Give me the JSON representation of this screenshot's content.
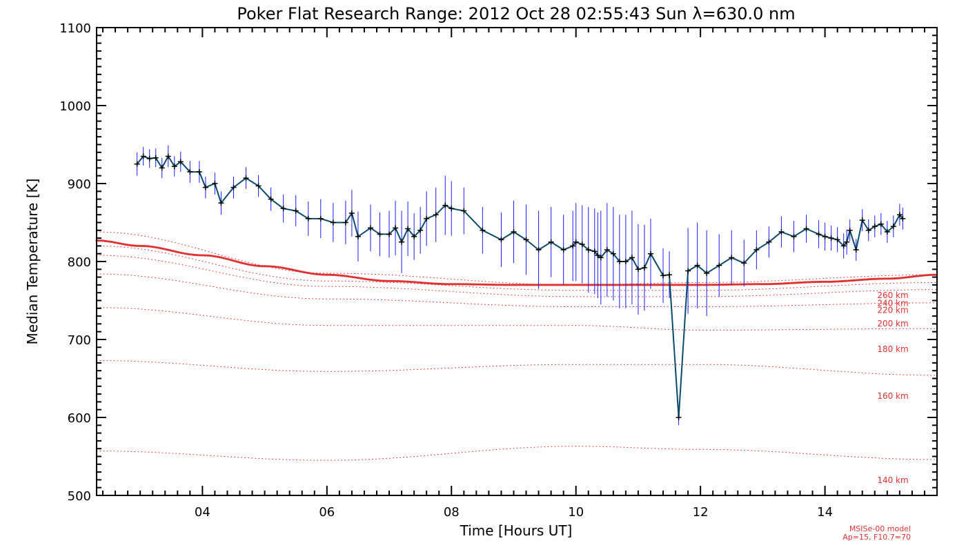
{
  "chart_data": {
    "type": "line",
    "title": "Poker Flat Research Range: 2012 Oct 28 02:55:43 Sun λ=630.0 nm",
    "xlabel": "Time [Hours UT]",
    "ylabel": "Median Temperature [K]",
    "xlim": [
      2.3,
      15.8
    ],
    "ylim": [
      500,
      1100
    ],
    "x_ticks": [
      4,
      6,
      8,
      10,
      12,
      14
    ],
    "x_tick_labels": [
      "04",
      "06",
      "08",
      "10",
      "12",
      "14"
    ],
    "y_ticks": [
      500,
      600,
      700,
      800,
      900,
      1000,
      1100
    ],
    "y_tick_labels": [
      "500",
      "600",
      "700",
      "800",
      "900",
      "1000",
      "1100"
    ],
    "grid": false,
    "colors": {
      "data_line": "#0a4a6a",
      "error_bars": "#1a1aff",
      "markers": "#000000",
      "model": "#e03030"
    },
    "series": [
      {
        "x": [
          2.95,
          3.05,
          3.15,
          3.25,
          3.35,
          3.45,
          3.55,
          3.65,
          3.8,
          3.95,
          4.05,
          4.2,
          4.3,
          4.5,
          4.7,
          4.9,
          5.1,
          5.3,
          5.5,
          5.7,
          5.9,
          6.1,
          6.3,
          6.4,
          6.5,
          6.7,
          6.85,
          7.0,
          7.1,
          7.2,
          7.3,
          7.4,
          7.5,
          7.6,
          7.75,
          7.9,
          8.0,
          8.2,
          8.5,
          8.8,
          9.0,
          9.2,
          9.4,
          9.6,
          9.8,
          9.95,
          10.0,
          10.1,
          10.2,
          10.3,
          10.35,
          10.4,
          10.5,
          10.6,
          10.7,
          10.8,
          10.9,
          11.0,
          11.1,
          11.2,
          11.4,
          11.5,
          11.65,
          11.8,
          11.95,
          12.1,
          12.3,
          12.5,
          12.7,
          12.9,
          13.1,
          13.3,
          13.5,
          13.7,
          13.9,
          14.0,
          14.1,
          14.2,
          14.3,
          14.35,
          14.4,
          14.5,
          14.6,
          14.7,
          14.8,
          14.9,
          15.0,
          15.1,
          15.2,
          15.25
        ],
        "values": [
          925,
          935,
          932,
          933,
          920,
          935,
          922,
          928,
          915,
          915,
          895,
          900,
          875,
          895,
          907,
          897,
          880,
          868,
          865,
          855,
          855,
          850,
          850,
          862,
          832,
          843,
          835,
          835,
          843,
          825,
          842,
          832,
          840,
          855,
          860,
          872,
          868,
          865,
          840,
          828,
          838,
          828,
          815,
          825,
          815,
          820,
          825,
          822,
          815,
          813,
          808,
          805,
          815,
          810,
          800,
          800,
          805,
          790,
          792,
          810,
          782,
          783,
          600,
          788,
          795,
          785,
          795,
          805,
          798,
          815,
          825,
          838,
          832,
          842,
          835,
          832,
          830,
          828,
          820,
          825,
          840,
          815,
          853,
          840,
          845,
          848,
          838,
          845,
          860,
          855
        ],
        "errors": [
          15,
          12,
          12,
          12,
          13,
          14,
          13,
          13,
          14,
          14,
          14,
          14,
          15,
          14,
          14,
          14,
          15,
          18,
          20,
          22,
          25,
          25,
          28,
          30,
          32,
          30,
          28,
          30,
          35,
          40,
          35,
          30,
          30,
          35,
          35,
          38,
          35,
          30,
          30,
          35,
          40,
          45,
          50,
          45,
          45,
          45,
          50,
          50,
          55,
          55,
          55,
          60,
          60,
          60,
          60,
          60,
          60,
          58,
          55,
          45,
          35,
          30,
          10,
          55,
          55,
          55,
          40,
          35,
          30,
          25,
          20,
          20,
          20,
          18,
          18,
          18,
          16,
          16,
          16,
          16,
          14,
          14,
          14,
          14,
          14,
          14,
          14,
          14,
          14,
          14
        ]
      }
    ],
    "model_curves": [
      {
        "label": "140 km",
        "x": [
          2.3,
          6.0,
          10.0,
          12.0,
          15.8
        ],
        "values": [
          557,
          545,
          563,
          559,
          546
        ]
      },
      {
        "label": "160 km",
        "x": [
          2.3,
          6.0,
          10.0,
          12.0,
          15.8
        ],
        "values": [
          673,
          659,
          668,
          668,
          654
        ]
      },
      {
        "label": "180 km",
        "x": [
          2.3,
          6.0,
          10.0,
          12.0,
          15.8
        ],
        "values": [
          741,
          718,
          718,
          712,
          714
        ]
      },
      {
        "label": "200 km",
        "x": [
          2.3,
          6.0,
          10.0,
          12.0,
          15.8
        ],
        "values": [
          784,
          752,
          742,
          742,
          747
        ]
      },
      {
        "label": "220 km",
        "x": [
          2.3,
          6.0,
          10.0,
          12.0,
          15.8
        ],
        "values": [
          808,
          768,
          755,
          755,
          764
        ]
      },
      {
        "label": "240 km",
        "x": [
          2.3,
          6.0,
          10.0,
          12.0,
          15.8
        ],
        "values": [
          820,
          775,
          763,
          763,
          773
        ]
      },
      {
        "label": "260 km",
        "x": [
          2.3,
          6.0,
          10.0,
          12.0,
          15.8
        ],
        "values": [
          838,
          785,
          770,
          773,
          783
        ]
      },
      {
        "label": "",
        "x": [
          2.3,
          3.0,
          4.0,
          5.0,
          6.0,
          7.0,
          8.0,
          9.0,
          10.0,
          11.0,
          12.0,
          13.0,
          14.0,
          15.0,
          15.8
        ],
        "values": [
          827,
          820,
          808,
          794,
          783,
          775,
          771,
          770,
          770,
          770,
          770,
          771,
          774,
          778,
          783
        ]
      }
    ],
    "model_note_line1": "MSISe-00 model",
    "model_note_line2": "Ap=15, F10.7=70"
  }
}
